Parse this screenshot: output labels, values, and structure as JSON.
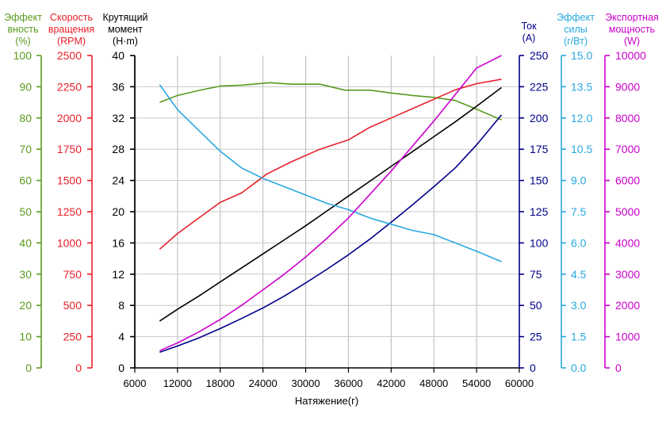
{
  "chart_data": {
    "type": "line",
    "xlabel": "Натяжение(г)",
    "xlim": [
      6000,
      60000
    ],
    "xticks": [
      6000,
      12000,
      18000,
      24000,
      30000,
      36000,
      42000,
      48000,
      54000,
      60000
    ],
    "axes": [
      {
        "id": "eff",
        "title_lines": [
          "Эффект",
          "вность",
          "(%)"
        ],
        "color": "#5a9a1e",
        "min": 0,
        "max": 100,
        "ticks": [
          0,
          10,
          20,
          30,
          40,
          50,
          60,
          70,
          80,
          90,
          100
        ]
      },
      {
        "id": "rpm",
        "title_lines": [
          "Скорость",
          "вращения",
          "(RPM)"
        ],
        "color": "#e8202a",
        "min": 0,
        "max": 2500,
        "ticks": [
          0,
          250,
          500,
          750,
          1000,
          1250,
          1500,
          1750,
          2000,
          2250,
          2500
        ]
      },
      {
        "id": "torque",
        "title_lines": [
          "Крутящий",
          "момент",
          "(Н·m)"
        ],
        "color": "#000000",
        "min": 0,
        "max": 40,
        "ticks": [
          0,
          4,
          8,
          12,
          16,
          20,
          24,
          28,
          32,
          36,
          40
        ]
      },
      {
        "id": "current",
        "title_lines": [
          "Ток",
          "(A)"
        ],
        "color": "#00008b",
        "min": 0,
        "max": 250,
        "ticks": [
          0,
          25,
          50,
          75,
          100,
          125,
          150,
          175,
          200,
          225,
          250
        ]
      },
      {
        "id": "force_eff",
        "title_lines": [
          "Эффект",
          "силы",
          "(г/Вт)"
        ],
        "color": "#29a8e0",
        "min": 0,
        "max": 15,
        "ticks": [
          "0.0",
          "1.5",
          "3.0",
          "4.5",
          "6.0",
          "7.5",
          "9.0",
          "10.5",
          "12.0",
          "13.5",
          "15.0"
        ]
      },
      {
        "id": "power",
        "title_lines": [
          "Экспортная",
          "мощность",
          "(W)"
        ],
        "color": "#cc00cc",
        "min": 0,
        "max": 10000,
        "ticks": [
          0,
          1000,
          2000,
          3000,
          4000,
          5000,
          6000,
          7000,
          8000,
          9000,
          10000
        ]
      }
    ],
    "series": [
      {
        "name": "Эффективность",
        "axis": "eff",
        "color": "#5a9a1e",
        "x": [
          9500,
          12000,
          15000,
          18000,
          21000,
          25000,
          28000,
          32000,
          35500,
          39000,
          42000,
          45000,
          48000,
          51000,
          54000,
          57500
        ],
        "y": [
          85.0,
          87.2,
          88.8,
          90.2,
          90.5,
          91.3,
          90.8,
          90.8,
          88.9,
          88.9,
          88.0,
          87.2,
          86.6,
          85.6,
          82.8,
          79.4
        ]
      },
      {
        "name": "Скорость вращения",
        "axis": "rpm",
        "color": "#e8202a",
        "x": [
          9500,
          12000,
          15000,
          18000,
          21000,
          24500,
          28000,
          32000,
          36000,
          39000,
          42000,
          45000,
          48000,
          51000,
          54000,
          57500
        ],
        "y": [
          950,
          1075,
          1200,
          1325,
          1400,
          1550,
          1650,
          1750,
          1825,
          1925,
          2000,
          2075,
          2150,
          2225,
          2275,
          2310
        ]
      },
      {
        "name": "Крутящий момент",
        "axis": "torque",
        "color": "#000000",
        "x": [
          9500,
          12000,
          15000,
          18000,
          21000,
          24000,
          27000,
          30000,
          33000,
          36000,
          39000,
          42000,
          45000,
          48000,
          51000,
          54000,
          57500
        ],
        "y": [
          6.0,
          7.5,
          9.2,
          11.0,
          12.8,
          14.6,
          16.4,
          18.2,
          20.1,
          22.0,
          23.9,
          25.8,
          27.7,
          29.6,
          31.5,
          33.5,
          35.9
        ]
      },
      {
        "name": "Ток",
        "axis": "current",
        "color": "#00008b",
        "x": [
          9500,
          12000,
          15000,
          18000,
          21000,
          24000,
          27000,
          30000,
          33000,
          36000,
          39000,
          42000,
          45000,
          48000,
          51000,
          54000,
          57500
        ],
        "y": [
          12.5,
          17.5,
          24.0,
          31.5,
          39.5,
          48.0,
          57.5,
          68.0,
          79.0,
          90.5,
          103.0,
          116.5,
          130.5,
          145.0,
          160.0,
          178.5,
          202.5
        ]
      },
      {
        "name": "Эффект силы",
        "axis": "force_eff",
        "color": "#29a8e0",
        "x": [
          9500,
          12000,
          15000,
          18000,
          21000,
          24000,
          27000,
          30000,
          33000,
          36000,
          39000,
          42000,
          45000,
          48000,
          51000,
          54000,
          57500
        ],
        "y": [
          13.6,
          12.4,
          11.4,
          10.4,
          9.6,
          9.1,
          8.7,
          8.3,
          7.9,
          7.6,
          7.2,
          6.9,
          6.6,
          6.4,
          6.0,
          5.6,
          5.1
        ]
      },
      {
        "name": "Экспортная мощность",
        "axis": "power",
        "color": "#cc00cc",
        "x": [
          9500,
          12000,
          15000,
          18000,
          21000,
          24000,
          27000,
          30000,
          33000,
          36000,
          39000,
          42000,
          45000,
          48000,
          51000,
          54000,
          57500
        ],
        "y": [
          550,
          800,
          1150,
          1550,
          2000,
          2500,
          3000,
          3550,
          4150,
          4800,
          5550,
          6300,
          7100,
          7900,
          8750,
          9600,
          10000
        ]
      }
    ]
  }
}
